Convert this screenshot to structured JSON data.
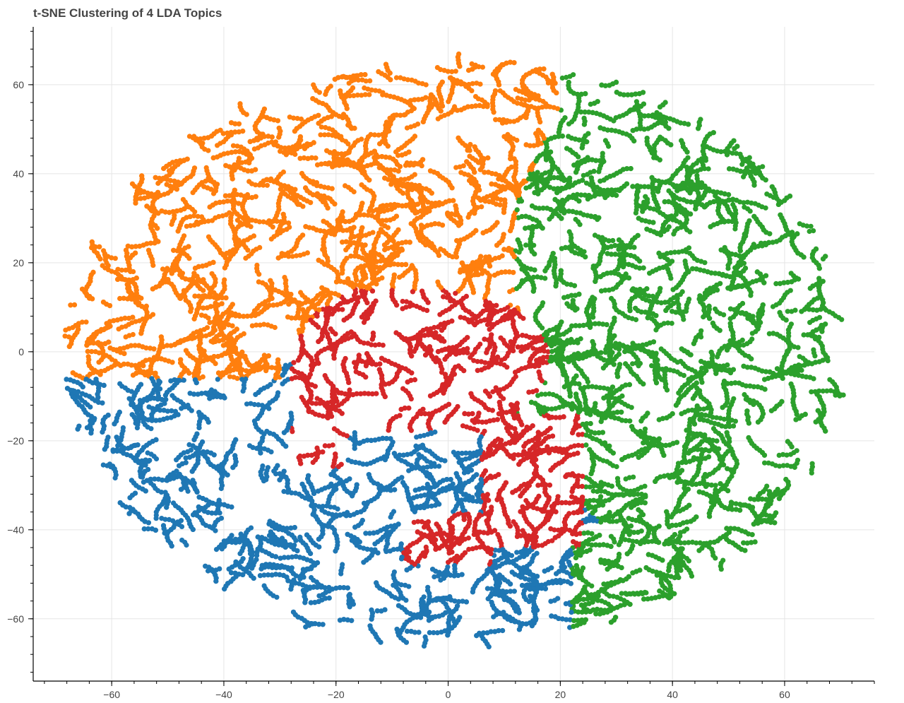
{
  "title": "t-SNE Clustering of 4 LDA Topics",
  "chart_data": {
    "type": "scatter",
    "title": "t-SNE Clustering of 4 LDA Topics",
    "xlabel": "",
    "ylabel": "",
    "xlim": [
      -74,
      76
    ],
    "ylim": [
      -74,
      73
    ],
    "grid": true,
    "legend": "none",
    "x_ticks": [
      -60,
      -40,
      -20,
      0,
      20,
      40,
      60
    ],
    "y_ticks": [
      60,
      40,
      20,
      0,
      -20,
      -40,
      -60
    ],
    "colors": {
      "topic_0": "#1f77b4",
      "topic_1": "#ff7f0e",
      "topic_2": "#2ca02c",
      "topic_3": "#d62728"
    },
    "clusters": [
      {
        "color_key": "topic_1",
        "region": "upper-left",
        "approx_center": [
          -20,
          32
        ],
        "approx_extent_x": [
          -68,
          22
        ],
        "approx_extent_y": [
          -7,
          67
        ]
      },
      {
        "color_key": "topic_2",
        "region": "right",
        "approx_center": [
          38,
          8
        ],
        "approx_extent_x": [
          10,
          70
        ],
        "approx_extent_y": [
          -55,
          61
        ]
      },
      {
        "color_key": "topic_0",
        "region": "lower-left",
        "approx_center": [
          -22,
          -30
        ],
        "approx_extent_x": [
          -66,
          32
        ],
        "approx_extent_y": [
          -67,
          5
        ]
      },
      {
        "color_key": "topic_3",
        "region": "center",
        "approx_center": [
          5,
          -8
        ],
        "approx_extent_x": [
          -32,
          26
        ],
        "approx_extent_y": [
          -48,
          17
        ]
      }
    ]
  }
}
